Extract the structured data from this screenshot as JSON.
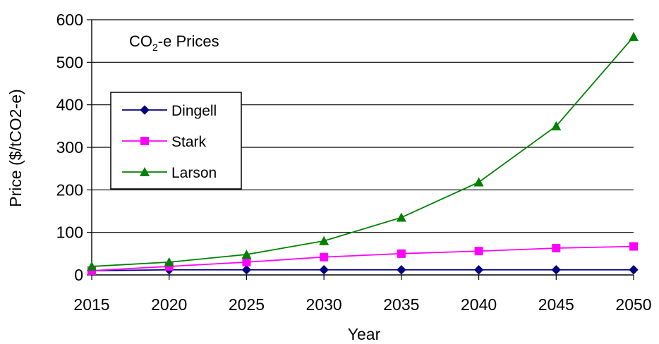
{
  "chart_data": {
    "type": "line",
    "title": "CO2-e Prices",
    "title_parts": {
      "pre": "CO",
      "sub": "2",
      "post": "-e Prices"
    },
    "xlabel": "Year",
    "ylabel": "Price ($/tCO2-e)",
    "x": [
      2015,
      2020,
      2025,
      2030,
      2035,
      2040,
      2045,
      2050
    ],
    "xlim": [
      2015,
      2050
    ],
    "ylim": [
      0,
      600
    ],
    "yticks": [
      0,
      100,
      200,
      300,
      400,
      500,
      600
    ],
    "grid": "horizontal",
    "legend_position": "left",
    "series": [
      {
        "name": "Dingell",
        "marker": "diamond",
        "color": "#000080",
        "values": [
          10,
          12,
          12,
          12,
          12,
          12,
          12,
          12
        ]
      },
      {
        "name": "Stark",
        "marker": "square",
        "color": "#ff00ff",
        "values": [
          10,
          20,
          30,
          42,
          50,
          56,
          63,
          67
        ]
      },
      {
        "name": "Larson",
        "marker": "triangle",
        "color": "#008000",
        "values": [
          20,
          30,
          48,
          80,
          135,
          218,
          350,
          560
        ]
      }
    ]
  }
}
